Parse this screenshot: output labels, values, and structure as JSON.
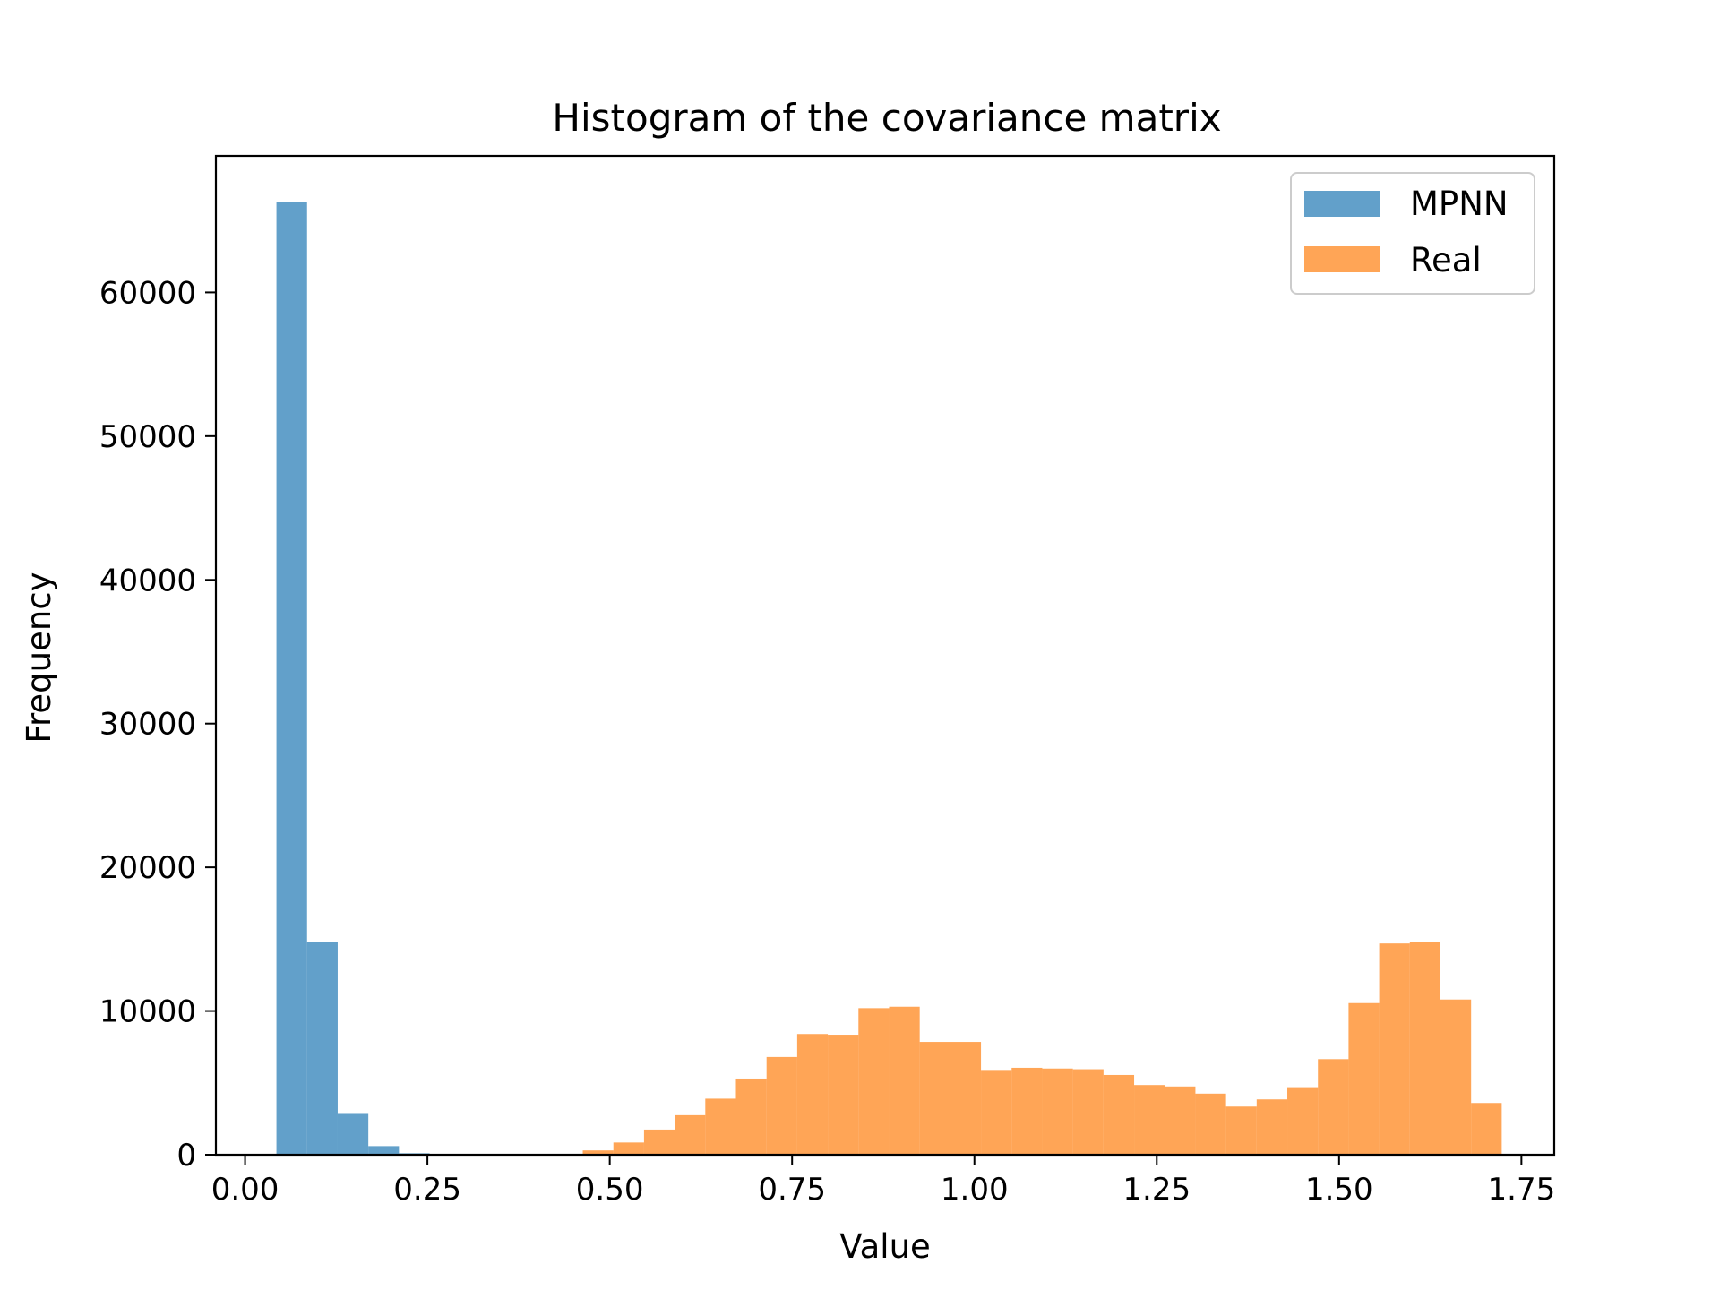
{
  "chart_data": {
    "type": "bar",
    "title": "Histogram of the covariance matrix",
    "xlabel": "Value",
    "ylabel": "Frequency",
    "xlim": [
      -0.04,
      1.795
    ],
    "ylim": [
      0,
      69500
    ],
    "xticks": [
      {
        "value": 0.0,
        "label": "0.00"
      },
      {
        "value": 0.25,
        "label": "0.25"
      },
      {
        "value": 0.5,
        "label": "0.50"
      },
      {
        "value": 0.75,
        "label": "0.75"
      },
      {
        "value": 1.0,
        "label": "1.00"
      },
      {
        "value": 1.25,
        "label": "1.25"
      },
      {
        "value": 1.5,
        "label": "1.50"
      },
      {
        "value": 1.75,
        "label": "1.75"
      }
    ],
    "yticks": [
      {
        "value": 0,
        "label": "0"
      },
      {
        "value": 10000,
        "label": "10000"
      },
      {
        "value": 20000,
        "label": "20000"
      },
      {
        "value": 30000,
        "label": "30000"
      },
      {
        "value": 40000,
        "label": "40000"
      },
      {
        "value": 50000,
        "label": "50000"
      },
      {
        "value": 60000,
        "label": "60000"
      }
    ],
    "grid": false,
    "legend": "top-right",
    "series": [
      {
        "name": "MPNN",
        "color": "#1f77b4",
        "opacity": 0.7,
        "bin_edges": [
          0.043,
          0.085,
          0.127,
          0.169,
          0.211,
          0.253,
          0.295,
          0.337,
          0.379,
          0.421,
          0.463,
          0.505
        ],
        "counts": [
          66300,
          14800,
          2900,
          600,
          100,
          20,
          5,
          0,
          0,
          0,
          0
        ]
      },
      {
        "name": "Real",
        "color": "#ff7f0e",
        "opacity": 0.7,
        "bin_edges": [
          0.463,
          0.505,
          0.547,
          0.589,
          0.631,
          0.673,
          0.715,
          0.757,
          0.799,
          0.841,
          0.883,
          0.925,
          0.967,
          1.009,
          1.051,
          1.093,
          1.135,
          1.177,
          1.219,
          1.261,
          1.303,
          1.345,
          1.387,
          1.429,
          1.471,
          1.513,
          1.555,
          1.597,
          1.639,
          1.681,
          1.723
        ],
        "counts": [
          300,
          850,
          1750,
          2750,
          3900,
          5300,
          6800,
          8400,
          8350,
          10200,
          10300,
          7850,
          7850,
          5900,
          6050,
          6000,
          5950,
          5550,
          4850,
          4750,
          4250,
          3350,
          3850,
          4700,
          6650,
          10550,
          14700,
          14800,
          10800,
          3600
        ]
      }
    ]
  }
}
